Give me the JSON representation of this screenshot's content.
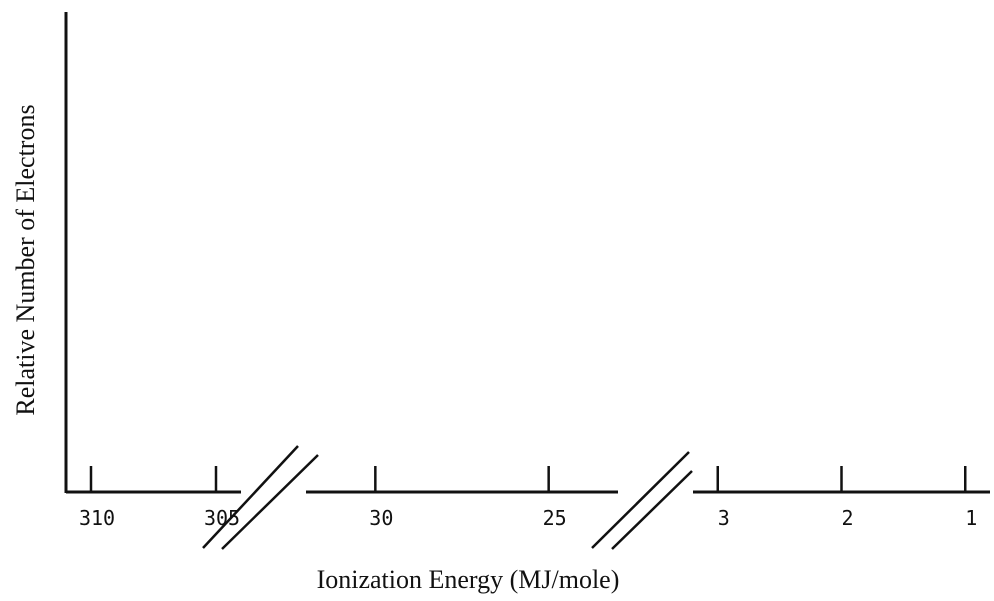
{
  "chart_data": {
    "type": "line",
    "title": "",
    "xlabel": "Ionization Energy (MJ/mole)",
    "ylabel": "Relative Number of Electrons",
    "x_direction": "decreasing",
    "x_axis_breaks": true,
    "segments": [
      {
        "xlim": [
          311,
          304
        ],
        "ticks": [
          "310",
          "305"
        ]
      },
      {
        "xlim": [
          32,
          23
        ],
        "ticks": [
          "30",
          "25"
        ]
      },
      {
        "xlim": [
          3.2,
          0.8
        ],
        "ticks": [
          "3",
          "2",
          "1"
        ]
      }
    ],
    "series": [],
    "grid": false
  }
}
